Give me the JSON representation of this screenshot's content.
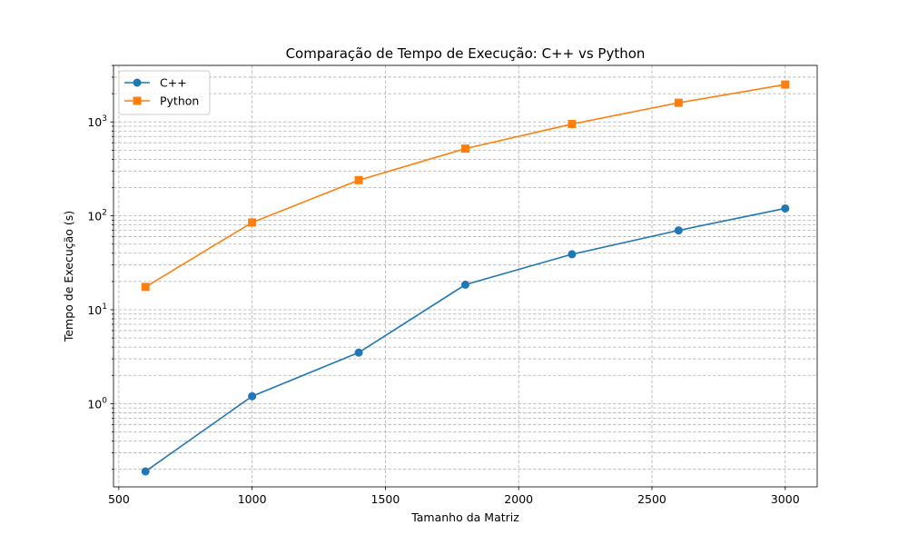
{
  "chart_data": {
    "type": "line",
    "title": "Comparação de Tempo de Execução: C++ vs Python",
    "xlabel": "Tamanho da Matriz",
    "ylabel": "Tempo de Execução (s)",
    "x": [
      600,
      1000,
      1400,
      1800,
      2200,
      2600,
      3000
    ],
    "xlim": [
      480,
      3120
    ],
    "ylim": [
      0.13,
      4000
    ],
    "yscale": "log",
    "grid": true,
    "grid_minor": true,
    "legend_position": "top-left",
    "x_ticks": [
      {
        "value": 500,
        "label": "500"
      },
      {
        "value": 1000,
        "label": "1000"
      },
      {
        "value": 1500,
        "label": "1500"
      },
      {
        "value": 2000,
        "label": "2000"
      },
      {
        "value": 2500,
        "label": "2500"
      },
      {
        "value": 3000,
        "label": "3000"
      }
    ],
    "y_ticks": [
      {
        "value": 1,
        "base": "10",
        "exp": "0"
      },
      {
        "value": 10,
        "base": "10",
        "exp": "1"
      },
      {
        "value": 100,
        "base": "10",
        "exp": "2"
      },
      {
        "value": 1000,
        "base": "10",
        "exp": "3"
      }
    ],
    "series": [
      {
        "name": "C++",
        "color": "#1f77b4",
        "marker": "circle",
        "values": [
          0.19,
          1.2,
          3.5,
          18.5,
          39,
          70,
          120
        ]
      },
      {
        "name": "Python",
        "color": "#ff7f0e",
        "marker": "square",
        "values": [
          17.5,
          85,
          240,
          520,
          950,
          1600,
          2500
        ]
      }
    ]
  }
}
